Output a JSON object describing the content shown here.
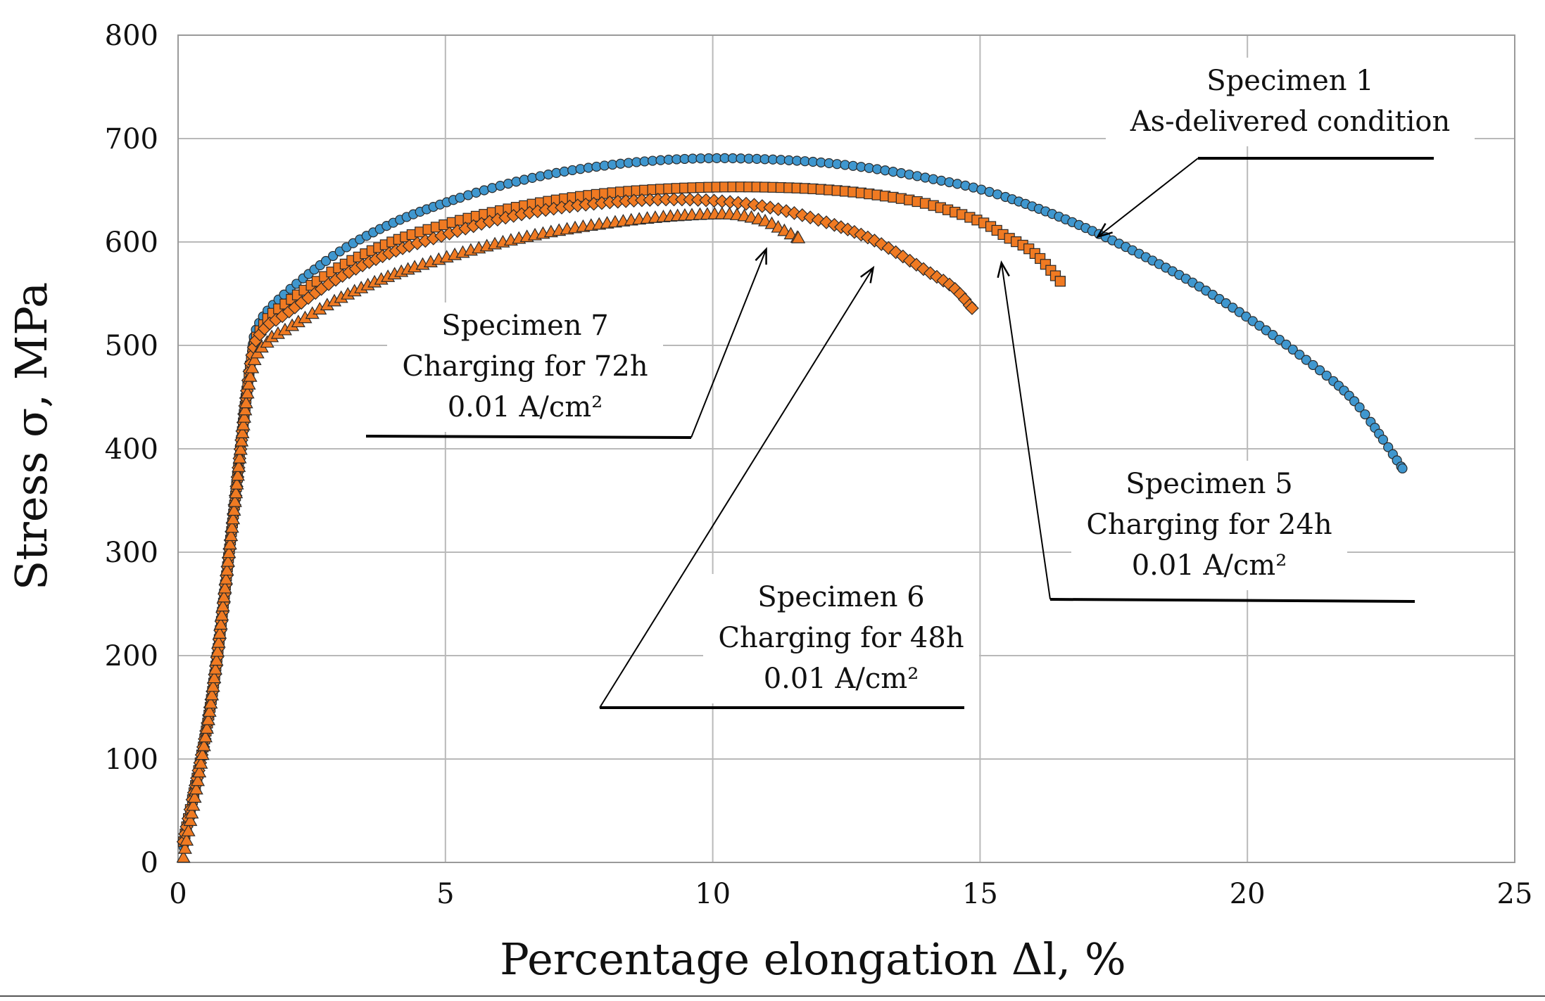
{
  "chart_data": {
    "type": "scatter",
    "title": "",
    "xlabel": "Percentage elongation Δl, %",
    "ylabel": "Stress σ, MPa",
    "xlim": [
      0,
      25
    ],
    "ylim": [
      0,
      800
    ],
    "xticks": [
      "0",
      "5",
      "10",
      "15",
      "20",
      "25"
    ],
    "yticks": [
      "0",
      "100",
      "200",
      "300",
      "400",
      "500",
      "600",
      "700",
      "800"
    ],
    "grid": true,
    "colors": {
      "specimen1": "#3f97cf",
      "charged": "#f07a22",
      "elastic_line": "#e51c1c",
      "marker_edge": "#2a2a2a"
    },
    "series": [
      {
        "name": "Specimen 1",
        "marker": "circle",
        "color": "#3f97cf",
        "points": [
          [
            0.1,
            15
          ],
          [
            0.6,
            150
          ],
          [
            1.0,
            320
          ],
          [
            1.35,
            480
          ],
          [
            1.5,
            520
          ],
          [
            2.0,
            550
          ],
          [
            3,
            590
          ],
          [
            4,
            618
          ],
          [
            5,
            638
          ],
          [
            6,
            654
          ],
          [
            7,
            666
          ],
          [
            8,
            674
          ],
          [
            9,
            679
          ],
          [
            10,
            681
          ],
          [
            11,
            680
          ],
          [
            12,
            677
          ],
          [
            13,
            671
          ],
          [
            14,
            662
          ],
          [
            15,
            651
          ],
          [
            16,
            634
          ],
          [
            17,
            613
          ],
          [
            18,
            588
          ],
          [
            19,
            560
          ],
          [
            20,
            527
          ],
          [
            21,
            490
          ],
          [
            22,
            446
          ],
          [
            22.9,
            381
          ]
        ]
      },
      {
        "name": "Specimen 5",
        "marker": "square",
        "color": "#f07a22",
        "points": [
          [
            0.1,
            20
          ],
          [
            0.6,
            150
          ],
          [
            1.0,
            320
          ],
          [
            1.35,
            480
          ],
          [
            1.6,
            520
          ],
          [
            2.0,
            540
          ],
          [
            3,
            575
          ],
          [
            4,
            600
          ],
          [
            5,
            617
          ],
          [
            6,
            630
          ],
          [
            7,
            640
          ],
          [
            8,
            647
          ],
          [
            9,
            651
          ],
          [
            10,
            653
          ],
          [
            11,
            653
          ],
          [
            12,
            651
          ],
          [
            13,
            646
          ],
          [
            14,
            637
          ],
          [
            15,
            620
          ],
          [
            15.5,
            605
          ],
          [
            16,
            590
          ],
          [
            16.5,
            562
          ]
        ]
      },
      {
        "name": "Specimen 6",
        "marker": "diamond",
        "color": "#f07a22",
        "points": [
          [
            0.1,
            20
          ],
          [
            0.6,
            150
          ],
          [
            1.0,
            320
          ],
          [
            1.35,
            480
          ],
          [
            1.6,
            515
          ],
          [
            2.0,
            530
          ],
          [
            3,
            565
          ],
          [
            4,
            590
          ],
          [
            5,
            607
          ],
          [
            6,
            622
          ],
          [
            7,
            632
          ],
          [
            8,
            638
          ],
          [
            9,
            641
          ],
          [
            10,
            640
          ],
          [
            11,
            634
          ],
          [
            12,
            621
          ],
          [
            13,
            602
          ],
          [
            14,
            572
          ],
          [
            14.5,
            556
          ],
          [
            14.85,
            536
          ]
        ]
      },
      {
        "name": "Specimen 7",
        "marker": "triangle",
        "color": "#f07a22",
        "points": [
          [
            0.1,
            5
          ],
          [
            0.6,
            150
          ],
          [
            1.0,
            320
          ],
          [
            1.35,
            470
          ],
          [
            1.7,
            505
          ],
          [
            2.0,
            515
          ],
          [
            3,
            545
          ],
          [
            4,
            568
          ],
          [
            5,
            585
          ],
          [
            6,
            599
          ],
          [
            7,
            610
          ],
          [
            8,
            618
          ],
          [
            9,
            624
          ],
          [
            10,
            627
          ],
          [
            10.5,
            626
          ],
          [
            11,
            620
          ],
          [
            11.3,
            612
          ],
          [
            11.6,
            604
          ]
        ]
      }
    ],
    "annotations": [
      {
        "id": "spec1",
        "lines": [
          "Specimen 1",
          "As-delivered condition"
        ],
        "points_to": [
          17.2,
          605
        ]
      },
      {
        "id": "spec7",
        "lines": [
          "Specimen 7",
          "Charging for 72h",
          "0.01 A/cm²"
        ],
        "points_to": [
          11.0,
          593
        ]
      },
      {
        "id": "spec6",
        "lines": [
          "Specimen 6",
          "Charging for 48h",
          "0.01 A/cm²"
        ],
        "points_to": [
          13.0,
          575
        ]
      },
      {
        "id": "spec5",
        "lines": [
          "Specimen 5",
          "Charging for 24h",
          "0.01 A/cm²"
        ],
        "points_to": [
          15.4,
          580
        ]
      }
    ]
  }
}
